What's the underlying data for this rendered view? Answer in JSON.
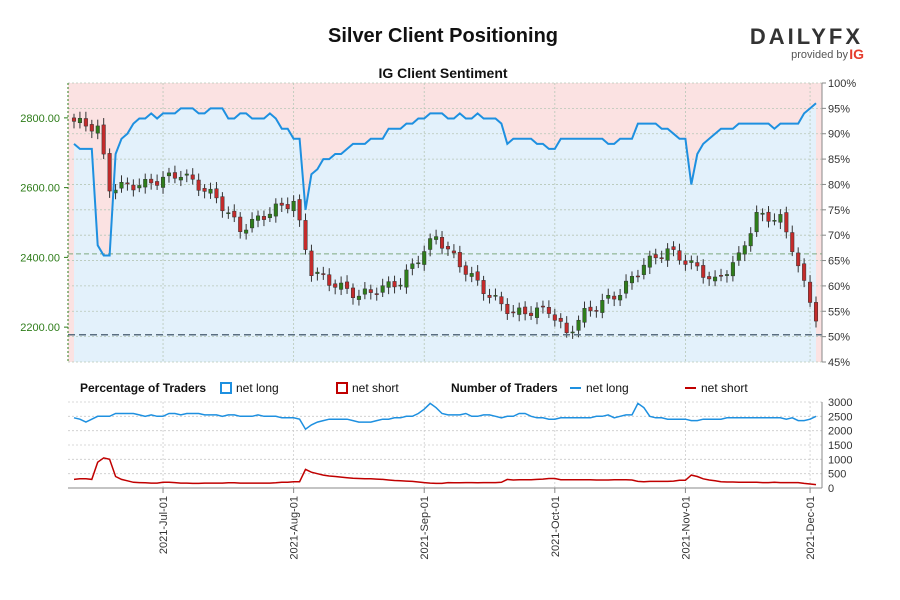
{
  "chart_data": {
    "type": "candlestick+line",
    "title": "Silver Client Positioning",
    "subtitle": "IG Client Sentiment",
    "price_axis": {
      "labels": [
        "2800.00",
        "2600.00",
        "2400.00",
        "2200.00"
      ],
      "values": [
        2800,
        2600,
        2400,
        2200
      ],
      "range": [
        2100,
        2900
      ]
    },
    "sentiment_axis": {
      "labels": [
        "100%",
        "95%",
        "90%",
        "85%",
        "80%",
        "75%",
        "70%",
        "65%",
        "60%",
        "55%",
        "50%",
        "45%"
      ],
      "values": [
        100,
        95,
        90,
        85,
        80,
        75,
        70,
        65,
        60,
        55,
        50,
        45
      ],
      "range": [
        45,
        100
      ]
    },
    "traders_axis": {
      "labels": [
        "3000",
        "2500",
        "2000",
        "1500",
        "1000",
        "500",
        "0"
      ],
      "values": [
        3000,
        2500,
        2000,
        1500,
        1000,
        500,
        0
      ],
      "range": [
        0,
        3000
      ]
    },
    "date_labels": [
      {
        "label": "2021-Jul-01",
        "index": 15
      },
      {
        "label": "2021-Aug-01",
        "index": 37
      },
      {
        "label": "2021-Sep-01",
        "index": 59
      },
      {
        "label": "2021-Oct-01",
        "index": 81
      },
      {
        "label": "2021-Nov-01",
        "index": 103
      },
      {
        "label": "2021-Dec-01",
        "index": 124
      }
    ],
    "num_days": 126,
    "price_levels": {
      "current_dash": 2178,
      "ref_dash": 2410
    },
    "pct_long": [
      88,
      87,
      87,
      87,
      68,
      66,
      66,
      86,
      89,
      90,
      92,
      93,
      93,
      94,
      93,
      94,
      94,
      94,
      95,
      95,
      95,
      94,
      94,
      95,
      95,
      95,
      93,
      93,
      94,
      94,
      93,
      93,
      93,
      94,
      93,
      91,
      91,
      89,
      89,
      75,
      82,
      83,
      85,
      85,
      86,
      86,
      87,
      88,
      88,
      88,
      89,
      89,
      89,
      91,
      91,
      91,
      92,
      92,
      93,
      93,
      94,
      94,
      94,
      93,
      93,
      94,
      93,
      93,
      94,
      93,
      93,
      93,
      92,
      88,
      89,
      89,
      89,
      89,
      88,
      88,
      87,
      87,
      89,
      89,
      89,
      89,
      89,
      89,
      89,
      89,
      88,
      88,
      89,
      89,
      89,
      92,
      92,
      92,
      92,
      91,
      91,
      90,
      89,
      89,
      80,
      86,
      88,
      89,
      90,
      91,
      91,
      91,
      92,
      92,
      92,
      92,
      92,
      92,
      91,
      92,
      92,
      92,
      92,
      94,
      95,
      96
    ],
    "net_long_traders": [
      2450,
      2400,
      2300,
      2400,
      2500,
      2500,
      2500,
      2600,
      2600,
      2600,
      2600,
      2550,
      2500,
      2550,
      2500,
      2500,
      2600,
      2600,
      2550,
      2600,
      2600,
      2600,
      2550,
      2550,
      2550,
      2500,
      2550,
      2550,
      2500,
      2500,
      2500,
      2550,
      2500,
      2500,
      2500,
      2450,
      2450,
      2450,
      2400,
      2050,
      2200,
      2300,
      2350,
      2400,
      2400,
      2400,
      2400,
      2350,
      2300,
      2300,
      2300,
      2350,
      2400,
      2400,
      2450,
      2450,
      2500,
      2500,
      2600,
      2750,
      2950,
      2800,
      2600,
      2550,
      2550,
      2550,
      2600,
      2500,
      2500,
      2550,
      2550,
      2500,
      2450,
      2500,
      2500,
      2600,
      2600,
      2500,
      2450,
      2450,
      2400,
      2400,
      2450,
      2450,
      2450,
      2450,
      2450,
      2450,
      2500,
      2500,
      2550,
      2450,
      2500,
      2550,
      2550,
      2950,
      2800,
      2500,
      2450,
      2450,
      2400,
      2400,
      2400,
      2400,
      2350,
      2350,
      2400,
      2400,
      2400,
      2400,
      2450,
      2450,
      2450,
      2450,
      2450,
      2450,
      2450,
      2450,
      2450,
      2450,
      2400,
      2450,
      2350,
      2350,
      2400,
      2500
    ],
    "net_short_traders": [
      300,
      320,
      320,
      300,
      900,
      1050,
      1000,
      400,
      300,
      250,
      200,
      190,
      180,
      170,
      170,
      200,
      200,
      190,
      170,
      170,
      160,
      160,
      170,
      170,
      170,
      170,
      180,
      180,
      170,
      170,
      170,
      170,
      170,
      170,
      180,
      200,
      200,
      220,
      220,
      650,
      550,
      500,
      450,
      420,
      400,
      380,
      360,
      340,
      330,
      320,
      320,
      310,
      300,
      280,
      260,
      250,
      240,
      230,
      210,
      190,
      170,
      160,
      160,
      190,
      180,
      180,
      190,
      190,
      180,
      190,
      190,
      190,
      200,
      300,
      280,
      290,
      290,
      290,
      300,
      310,
      330,
      330,
      290,
      290,
      290,
      290,
      290,
      290,
      280,
      280,
      280,
      290,
      290,
      290,
      280,
      230,
      220,
      230,
      230,
      230,
      230,
      240,
      270,
      270,
      450,
      400,
      320,
      280,
      250,
      220,
      210,
      210,
      200,
      200,
      200,
      200,
      190,
      190,
      200,
      190,
      190,
      190,
      190,
      160,
      140,
      120
    ],
    "legend": {
      "percentage_title": "Percentage of Traders",
      "number_title": "Number of Traders",
      "net_long": "net long",
      "net_short": "net short"
    },
    "colors": {
      "long": "#1e90e0",
      "short": "#c00000",
      "candle_up": "#2e7d1a",
      "candle_down": "#c42b2b",
      "long_fill": "#e3f1fb",
      "short_fill": "#fbe2e2"
    }
  },
  "logo": {
    "word": "DAILYFX",
    "provided_by": "provided by",
    "brand": "IG"
  }
}
